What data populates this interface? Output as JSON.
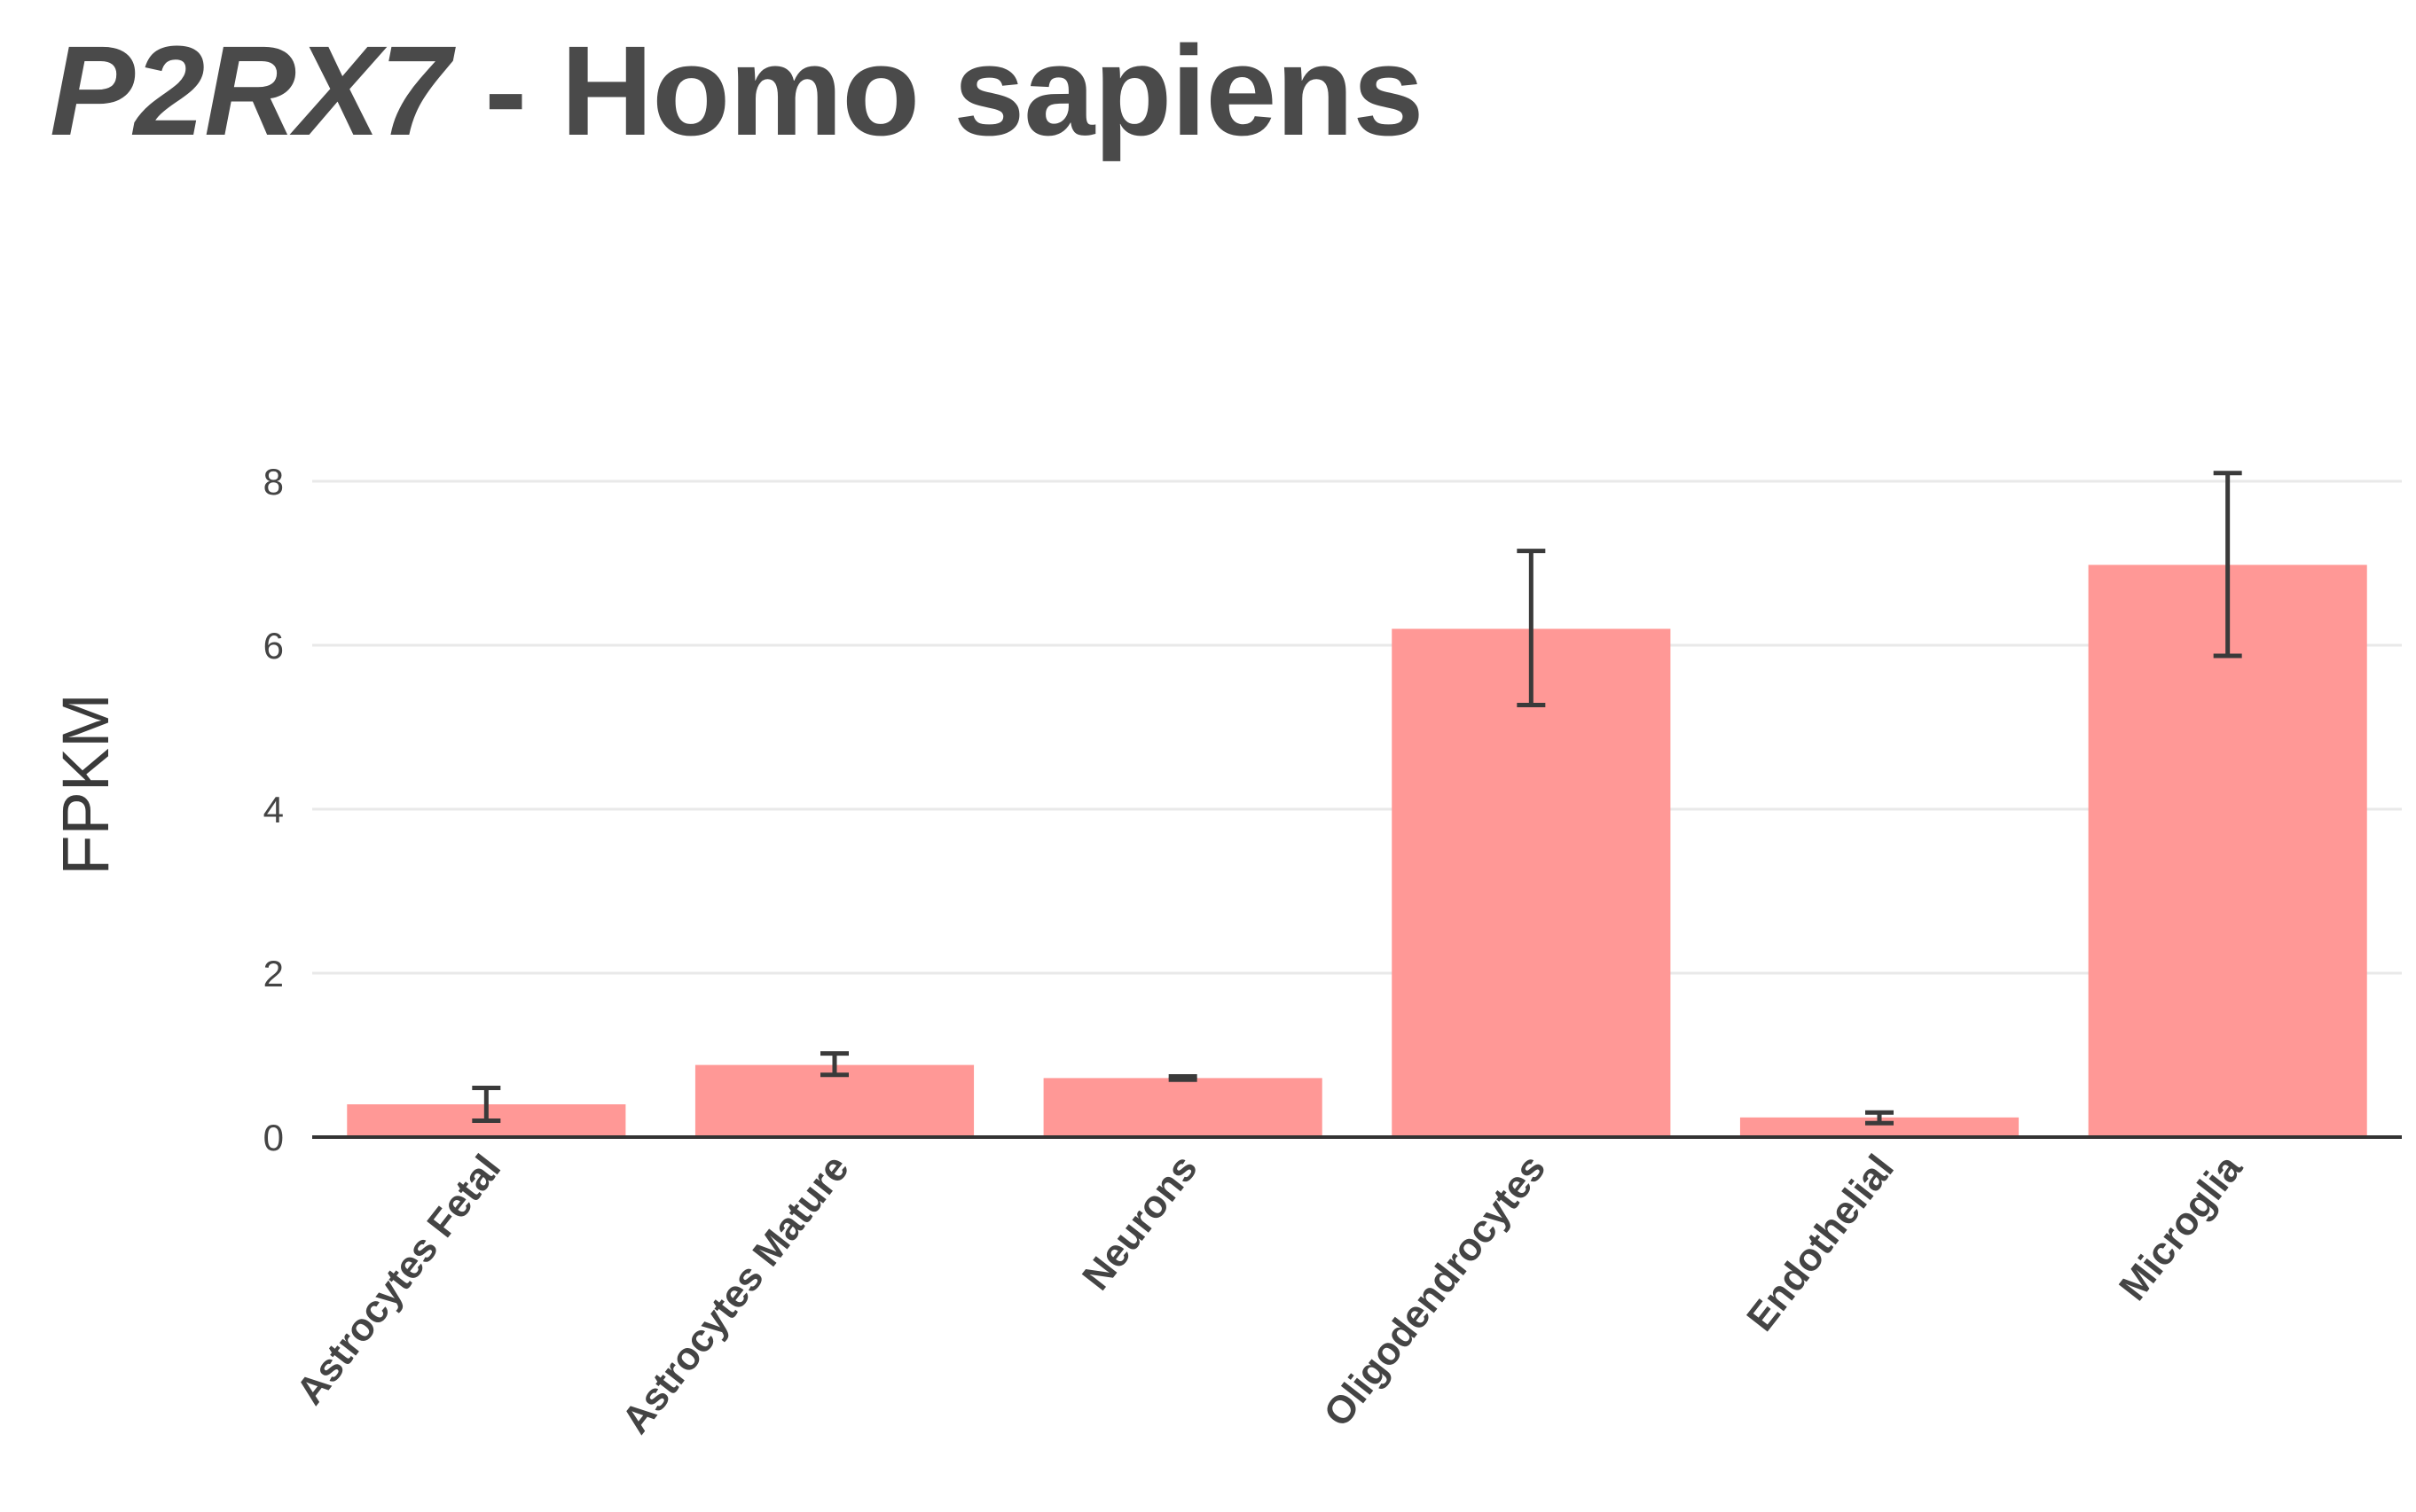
{
  "title": {
    "gene": "P2RX7",
    "rest": " - Homo sapiens"
  },
  "colors": {
    "bar": "#ff9896",
    "error_bar": "#3a3a3a",
    "grid": "#e9e9e9",
    "axis": "#333333",
    "text": "#444444"
  },
  "chart_data": {
    "type": "bar",
    "title": "P2RX7 - Homo sapiens",
    "xlabel": "",
    "ylabel": "FPKM",
    "ylim": [
      0,
      8.5
    ],
    "yticks": [
      0,
      2,
      4,
      6,
      8
    ],
    "grid": true,
    "legend": "none",
    "categories": [
      "Astrocytes Fetal",
      "Astrocytes Mature",
      "Neurons",
      "Oligodendrocytes",
      "Endothelial",
      "Microglia"
    ],
    "values": [
      0.4,
      0.88,
      0.72,
      6.2,
      0.24,
      6.98
    ],
    "error_low": [
      0.2,
      0.76,
      0.7,
      5.27,
      0.17,
      5.87
    ],
    "error_high": [
      0.6,
      1.02,
      0.74,
      7.15,
      0.3,
      8.1
    ]
  }
}
